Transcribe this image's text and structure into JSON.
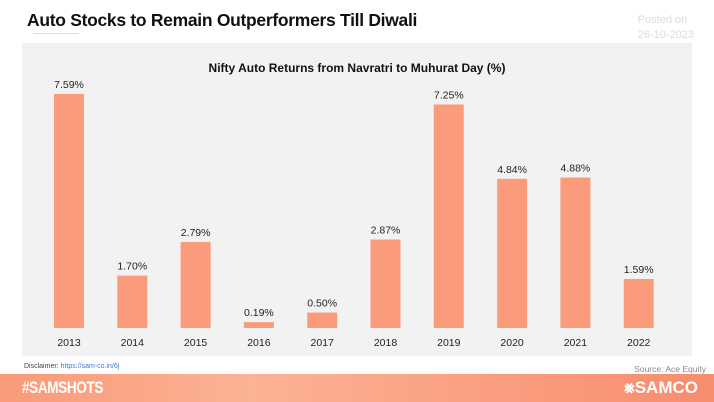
{
  "header": {
    "title": "Auto Stocks to Remain Outperformers Till Diwali",
    "posted_label": "Posted on",
    "posted_date": "26-10-2023"
  },
  "chart_data": {
    "type": "bar",
    "title": "Nifty Auto Returns from Navratri to Muhurat Day (%)",
    "categories": [
      "2013",
      "2014",
      "2015",
      "2016",
      "2017",
      "2018",
      "2019",
      "2020",
      "2021",
      "2022"
    ],
    "values": [
      7.59,
      1.7,
      2.79,
      0.19,
      0.5,
      2.87,
      7.25,
      4.84,
      4.88,
      1.59
    ],
    "labels": [
      "7.59%",
      "1.70%",
      "2.79%",
      "0.19%",
      "0.50%",
      "2.87%",
      "7.25%",
      "4.84%",
      "4.88%",
      "1.59%"
    ],
    "ylim": [
      0,
      8
    ],
    "grid": false,
    "bar_color": "#fa9c7c"
  },
  "footer": {
    "disclaimer_label": "Disclaimer:",
    "disclaimer_link": "https://sam-co.in/6j",
    "source": "Source:  Ace Equity",
    "hashtag": "#SAMSHOTS",
    "brand": "SAMCO"
  }
}
